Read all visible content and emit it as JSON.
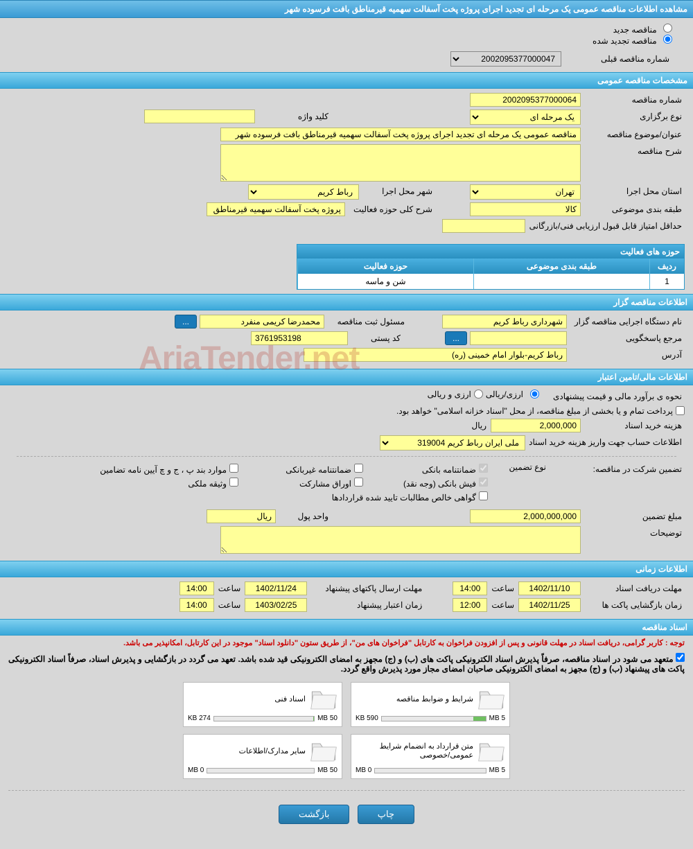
{
  "header_title": "مشاهده اطلاعات مناقصه عمومی یک مرحله ای تجدید اجرای پروژه پخت آسفالت سهمیه قیرمناطق بافت فرسوده شهر",
  "radio": {
    "new_label": "مناقصه جدید",
    "renewed_label": "مناقصه تجدید شده"
  },
  "prev_tender": {
    "label": "شماره مناقصه قبلی",
    "value": "2002095377000047"
  },
  "sections": {
    "general": "مشخصات مناقصه عمومی",
    "organizer": "اطلاعات مناقصه گزار",
    "financial": "اطلاعات مالی/تامین اعتبار",
    "timing": "اطلاعات زمانی",
    "documents": "اسناد مناقصه"
  },
  "general": {
    "number_label": "شماره مناقصه",
    "number": "2002095377000064",
    "type_label": "نوع برگزاری",
    "type": "یک مرحله ای",
    "keyword_label": "کلید واژه",
    "keyword": "",
    "subject_label": "عنوان/موضوع مناقصه",
    "subject": "مناقصه عمومی یک مرحله ای تجدید اجرای پروژه پخت آسفالت سهمیه قیرمناطق بافت فرسوده شهر",
    "desc_label": "شرح مناقصه",
    "desc": "",
    "province_label": "استان محل اجرا",
    "province": "تهران",
    "city_label": "شهر محل اجرا",
    "city": "رباط کریم",
    "category_label": "طبقه بندی موضوعی",
    "category": "کالا",
    "activity_scope_label": "شرح کلی حوزه فعالیت",
    "activity_scope": "پروژه پخت آسفالت سهمیه قیرمناطق بافت فرسوده شهر",
    "min_score_label": "حداقل امتیاز قابل قبول ارزیابی فنی/بازرگانی",
    "min_score": ""
  },
  "activity_table": {
    "title": "حوزه های فعالیت",
    "col_row": "ردیف",
    "col_category": "طبقه بندی موضوعی",
    "col_activity": "حوزه فعالیت",
    "rows": [
      {
        "idx": "1",
        "category": "",
        "activity": "شن و ماسه"
      }
    ]
  },
  "organizer": {
    "org_label": "نام دستگاه اجرایی مناقصه گزار",
    "org": "شهرداری رباط کریم",
    "reg_person_label": "مسئول ثبت مناقصه",
    "reg_person": "محمدرضا کریمی منفرد",
    "responder_label": "مرجع پاسخگویی",
    "responder": "",
    "postal_label": "کد پستی",
    "postal": "3761953198",
    "address_label": "آدرس",
    "address": "رباط کریم-بلوار امام خمینی (ره)",
    "more_btn": "..."
  },
  "financial": {
    "estimate_label": "نحوه ی برآورد مالی و قیمت پیشنهادی",
    "currency_option": "ارزی/ریالی",
    "rial_option": "ارزی و ریالی",
    "treasury_label": "پرداخت تمام و یا بخشی از مبلغ مناقصه، از محل \"اسناد خزانه اسلامی\" خواهد بود.",
    "doc_cost_label": "هزینه خرید اسناد",
    "doc_cost": "2,000,000",
    "unit_rial": "ریال",
    "account_label": "اطلاعات حساب جهت واریز هزینه خرید اسناد",
    "account": "ملی ایران رباط کریم 319004",
    "guarantee_label": "تضمین شرکت در مناقصه:",
    "guarantee_type_label": "نوع تضمین",
    "guarantee_types": {
      "bank": "ضمانتنامه بانکی",
      "nonbank": "ضمانتنامه غیربانکی",
      "cases": "موارد بند پ ، ج و چ آیین نامه تضامین",
      "cash": "فیش بانکی (وجه نقد)",
      "bonds": "اوراق مشارکت",
      "property": "وثیقه ملکی",
      "cert": "گواهی خالص مطالبات تایید شده قراردادها"
    },
    "guarantee_amount_label": "مبلغ تضمین",
    "guarantee_amount": "2,000,000,000",
    "currency_unit_label": "واحد پول",
    "currency_unit": "ریال",
    "notes_label": "توضیحات",
    "notes": ""
  },
  "timing": {
    "receipt_deadline_label": "مهلت دریافت اسناد",
    "receipt_date": "1402/11/10",
    "receipt_time": "14:00",
    "time_label": "ساعت",
    "submission_deadline_label": "مهلت ارسال پاکتهای پیشنهاد",
    "submission_date": "1402/11/24",
    "submission_time": "14:00",
    "opening_label": "زمان بازگشایی پاکت ها",
    "opening_date": "1402/11/25",
    "opening_time": "12:00",
    "validity_label": "زمان اعتبار پیشنهاد",
    "validity_date": "1403/02/25",
    "validity_time": "14:00"
  },
  "documents": {
    "notice_red": "توجه : کاربر گرامی، دریافت اسناد در مهلت قانونی و پس از افزودن فراخوان به کارتابل \"فراخوان های من\"، از طریق ستون \"دانلود اسناد\" موجود در این کارتابل، امکانپذیر می باشد.",
    "notice_bold": "متعهد می شود در اسناد مناقصه، صرفاً پذیرش اسناد الکترونیکی پاکت های (ب) و (ج) مجهز به امضای الکترونیکی قید شده باشد. تعهد می گردد در بازگشایی و پذیرش اسناد، صرفاً اسناد الکترونیکی پاکت های پیشنهاد (ب) و (ج) مجهز به امضای الکترونیکی صاحبان امضای مجاز مورد پذیرش واقع گردد.",
    "items": [
      {
        "title": "شرایط و ضوابط مناقصه",
        "used": "590 KB",
        "total": "5 MB",
        "pct": 12
      },
      {
        "title": "اسناد فنی",
        "used": "274 KB",
        "total": "50 MB",
        "pct": 1
      },
      {
        "title": "متن قرارداد به انضمام شرایط عمومی/خصوصی",
        "used": "0 MB",
        "total": "5 MB",
        "pct": 0
      },
      {
        "title": "سایر مدارک/اطلاعات",
        "used": "0 MB",
        "total": "50 MB",
        "pct": 0
      }
    ]
  },
  "footer": {
    "print": "چاپ",
    "back": "بازگشت"
  },
  "watermark": "AriaTender.net"
}
